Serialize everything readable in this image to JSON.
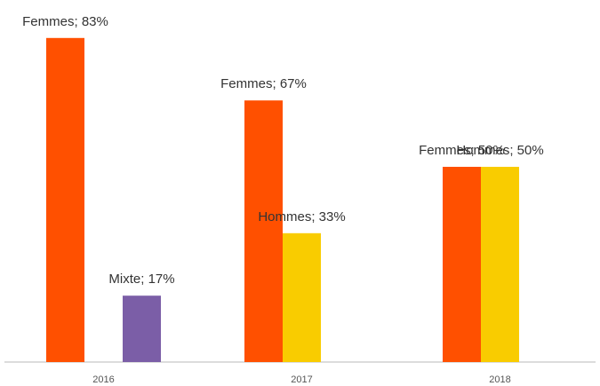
{
  "chart_data": {
    "type": "bar",
    "categories": [
      "2016",
      "2017",
      "2018"
    ],
    "series": [
      {
        "name": "Femmes",
        "color": "#ff5000",
        "values": [
          83,
          67,
          50
        ],
        "value_labels": [
          "Femmes; 83%",
          "Femmes; 67%",
          "Femmes; 50%"
        ]
      },
      {
        "name": "Hommes",
        "color": "#f9cc00",
        "values": [
          null,
          33,
          50
        ],
        "value_labels": [
          null,
          "Hommes; 33%",
          "Hommes; 50%"
        ]
      },
      {
        "name": "Mixte",
        "color": "#7b5ea7",
        "values": [
          17,
          null,
          null
        ],
        "value_labels": [
          "Mixte; 17%",
          null,
          null
        ]
      }
    ],
    "ylim": [
      0,
      90
    ]
  }
}
